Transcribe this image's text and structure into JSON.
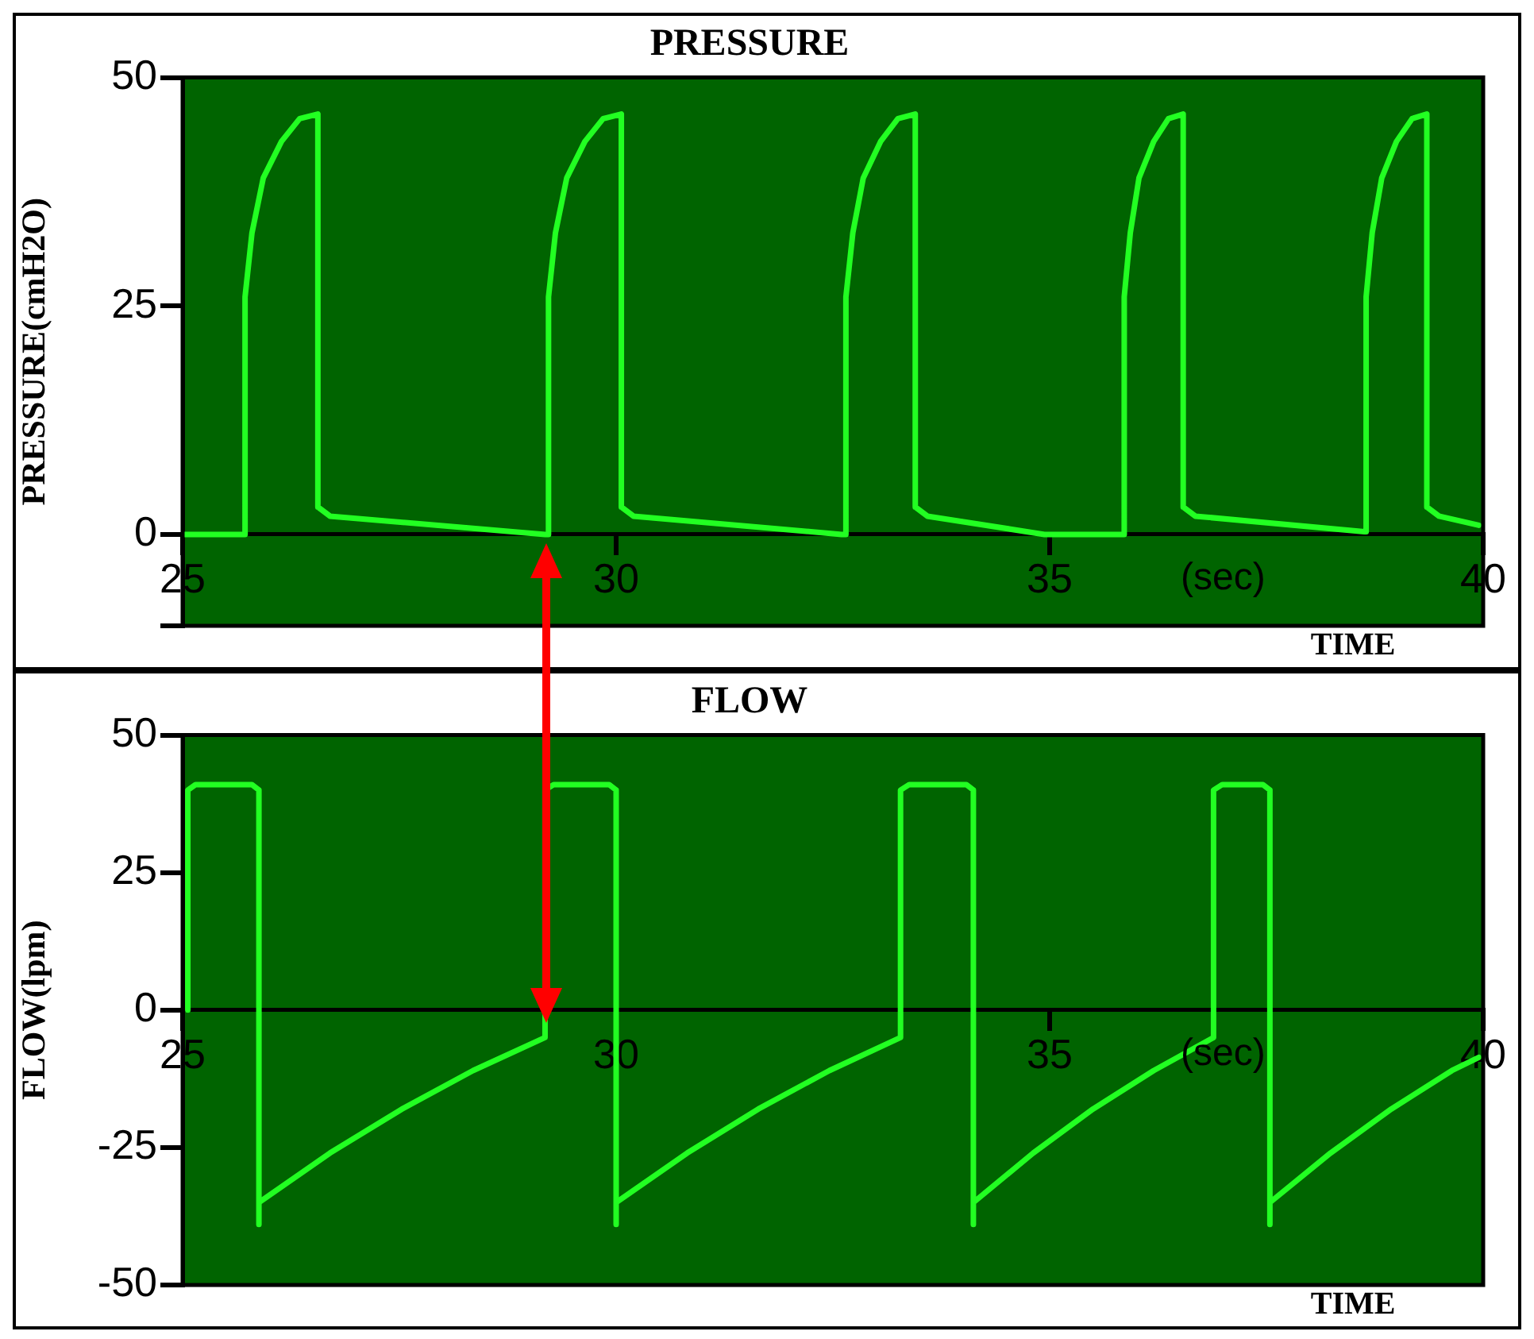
{
  "chart_data": [
    {
      "type": "line",
      "title": "PRESSURE",
      "ylabel": "PRESSURE(cmH2O)",
      "xlabel": "TIME",
      "annotations": [
        "(sec)"
      ],
      "color": "#22ff22",
      "marker": "none",
      "line_style": "solid",
      "legend": false,
      "grid": false,
      "xlim": [
        25,
        40
      ],
      "xticks": [
        25,
        30,
        35,
        40
      ],
      "ylim": [
        -10,
        50
      ],
      "yticks": [
        {
          "value": -10,
          "label": null
        },
        0,
        25,
        50
      ],
      "x": [
        25,
        25.72,
        25.72,
        25.8,
        25.93,
        26.14,
        26.35,
        26.56,
        26.56,
        26.7,
        29.18,
        29.22,
        29.22,
        29.3,
        29.43,
        29.64,
        29.85,
        30.06,
        30.06,
        30.2,
        32.6,
        32.65,
        32.65,
        32.73,
        32.85,
        33.05,
        33.25,
        33.45,
        33.45,
        33.59,
        34.94,
        35.86,
        35.86,
        35.93,
        36.03,
        36.2,
        36.37,
        36.54,
        36.54,
        36.68,
        38.63,
        38.65,
        38.65,
        38.72,
        38.83,
        39.0,
        39.18,
        39.35,
        39.35,
        39.49,
        39.95
      ],
      "values": [
        0,
        0,
        26,
        33,
        39,
        43,
        45.5,
        46,
        3,
        2,
        0,
        0,
        26,
        33,
        39,
        43,
        45.5,
        46,
        3,
        2,
        0,
        0,
        26,
        33,
        39,
        43,
        45.5,
        46,
        3,
        2,
        0,
        0,
        26,
        33,
        39,
        43,
        45.5,
        46,
        3,
        2,
        0.3,
        0.3,
        26,
        33,
        39,
        43,
        45.5,
        46,
        3,
        2,
        1
      ]
    },
    {
      "type": "line",
      "title": "FLOW",
      "ylabel": "FLOW(lpm)",
      "xlabel": "TIME",
      "annotations": [
        "(sec)"
      ],
      "color": "#22ff22",
      "marker": "none",
      "line_style": "solid",
      "legend": false,
      "grid": false,
      "xlim": [
        25,
        40
      ],
      "xticks": [
        25,
        30,
        35,
        40
      ],
      "ylim": [
        -50,
        50
      ],
      "yticks": [
        -50,
        -25,
        0,
        25,
        50
      ],
      "x": [
        25.06,
        25.06,
        25.15,
        25.8,
        25.88,
        25.88,
        25.88,
        26.7,
        27.53,
        28.35,
        29.18,
        29.18,
        29.28,
        29.92,
        30.0,
        30.0,
        30.0,
        30.82,
        31.64,
        32.46,
        33.28,
        33.28,
        33.38,
        34.04,
        34.12,
        34.12,
        34.12,
        34.81,
        35.5,
        36.2,
        36.89,
        36.89,
        36.99,
        37.46,
        37.54,
        37.54,
        37.54,
        38.24,
        38.94,
        39.64,
        39.95
      ],
      "values": [
        0,
        40,
        41,
        41,
        40,
        -39,
        -35,
        -26,
        -18,
        -11,
        -5,
        40,
        41,
        41,
        40,
        -39,
        -35,
        -26,
        -18,
        -11,
        -5,
        40,
        41,
        41,
        40,
        -39,
        -35,
        -26,
        -18,
        -11,
        -5,
        40,
        41,
        41,
        40,
        -39,
        -35,
        -26,
        -18,
        -11,
        -8.6
      ]
    }
  ]
}
